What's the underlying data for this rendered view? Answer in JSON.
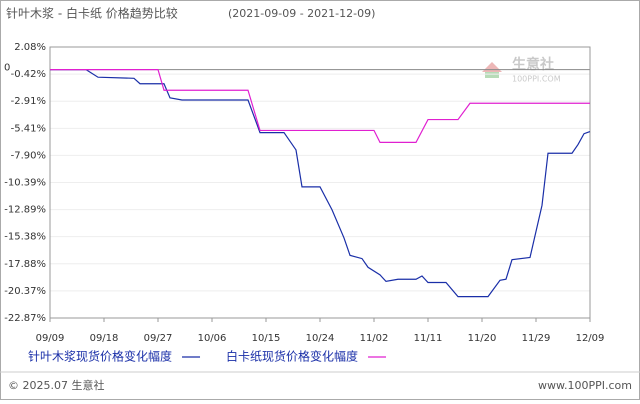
{
  "chart_data": {
    "type": "line",
    "title": "针叶木浆 - 白卡纸 价格趋势比较",
    "subtitle": "(2021-09-09 - 2021-12-09)",
    "xlim": [
      0,
      90
    ],
    "xticks": [
      {
        "value": 0,
        "label": "09/09"
      },
      {
        "value": 9,
        "label": "09/18"
      },
      {
        "value": 18,
        "label": "09/27"
      },
      {
        "value": 27,
        "label": "10/06"
      },
      {
        "value": 36,
        "label": "10/15"
      },
      {
        "value": 45,
        "label": "10/24"
      },
      {
        "value": 54,
        "label": "11/02"
      },
      {
        "value": 63,
        "label": "11/11"
      },
      {
        "value": 72,
        "label": "11/20"
      },
      {
        "value": 81,
        "label": "11/29"
      },
      {
        "value": 90,
        "label": "12/09"
      }
    ],
    "ylim": [
      -22.87,
      2.08
    ],
    "yticks": [
      {
        "value": 2.08,
        "label": "2.08%"
      },
      {
        "value": -0.42,
        "label": "-0.42%"
      },
      {
        "value": -2.91,
        "label": "-2.91%"
      },
      {
        "value": -5.41,
        "label": "-5.41%"
      },
      {
        "value": -7.9,
        "label": "-7.90%"
      },
      {
        "value": -10.39,
        "label": "-10.39%"
      },
      {
        "value": -12.89,
        "label": "-12.89%"
      },
      {
        "value": -15.38,
        "label": "-15.38%"
      },
      {
        "value": -17.88,
        "label": "-17.88%"
      },
      {
        "value": -20.37,
        "label": "-20.37%"
      },
      {
        "value": -22.87,
        "label": "-22.87%"
      }
    ],
    "reference_line": 0,
    "grid": true,
    "series": [
      {
        "name": "针叶木浆现货价格变化幅度",
        "color": "#1a2fa8",
        "x": [
          0,
          6,
          8,
          14,
          15,
          19,
          20,
          22,
          33,
          35,
          39,
          41,
          42,
          45,
          47,
          49,
          50,
          52,
          53,
          55,
          56,
          58,
          61,
          62,
          63,
          66,
          68,
          73,
          75,
          76,
          77,
          80,
          82,
          83,
          87,
          88,
          89,
          90
        ],
        "values": [
          0,
          0,
          -0.7,
          -0.8,
          -1.3,
          -1.3,
          -2.6,
          -2.8,
          -2.8,
          -5.8,
          -5.8,
          -7.4,
          -10.8,
          -10.8,
          -12.9,
          -15.5,
          -17.1,
          -17.4,
          -18.2,
          -18.9,
          -19.5,
          -19.3,
          -19.3,
          -19.0,
          -19.6,
          -19.6,
          -20.9,
          -20.9,
          -19.4,
          -19.3,
          -17.5,
          -17.3,
          -12.5,
          -7.7,
          -7.7,
          -6.9,
          -5.9,
          -5.7
        ]
      },
      {
        "name": "白卡纸现货价格变化幅度",
        "color": "#e020d0",
        "x": [
          0,
          18,
          19,
          33,
          35,
          54,
          55,
          61,
          63,
          68,
          70,
          90
        ],
        "values": [
          0,
          0,
          -1.9,
          -1.9,
          -5.6,
          -5.6,
          -6.7,
          -6.7,
          -4.6,
          -4.6,
          -3.1,
          -3.1
        ]
      }
    ],
    "watermark": {
      "brand": "生意社",
      "site": "100PPI.COM"
    },
    "footer": {
      "copyright": "© 2025.07 生意社",
      "url": "www.100PPI.com"
    }
  }
}
